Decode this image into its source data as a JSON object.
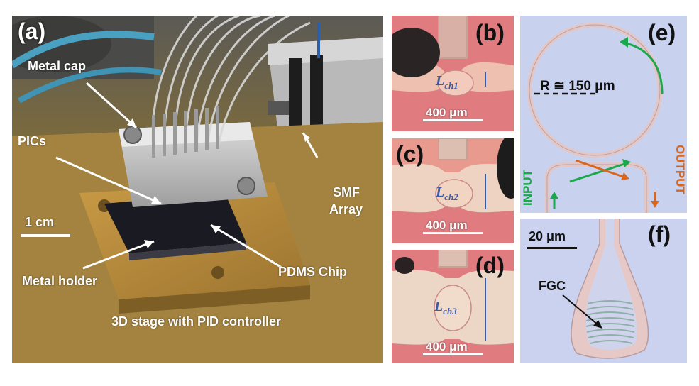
{
  "panel_a": {
    "tag": "(a)",
    "labels": {
      "metal_cap": "Metal cap",
      "pics": "PICs",
      "scale": "1 cm",
      "metal_holder": "Metal holder",
      "smf_line1": "SMF",
      "smf_line2": "Array",
      "pdms": "PDMS Chip",
      "stage": "3D stage with PID controller"
    }
  },
  "panel_b": {
    "tag": "(b)",
    "channel": "L",
    "sub": "ch1",
    "scale": "400 μm"
  },
  "panel_c": {
    "tag": "(c)",
    "channel": "L",
    "sub": "ch2",
    "scale": "400 μm"
  },
  "panel_d": {
    "tag": "(d)",
    "channel": "L",
    "sub": "ch3",
    "scale": "400 μm"
  },
  "panel_e": {
    "tag": "(e)",
    "radius_label": "R ≅ 150 μm",
    "input": "INPUT",
    "output": "OUTPUT"
  },
  "panel_f": {
    "tag": "(f)",
    "scale": "20 μm",
    "fgc": "FGC"
  },
  "colors": {
    "green": "#1aa84a",
    "orange": "#d9661e",
    "chan_blue": "#3b5aa8"
  }
}
